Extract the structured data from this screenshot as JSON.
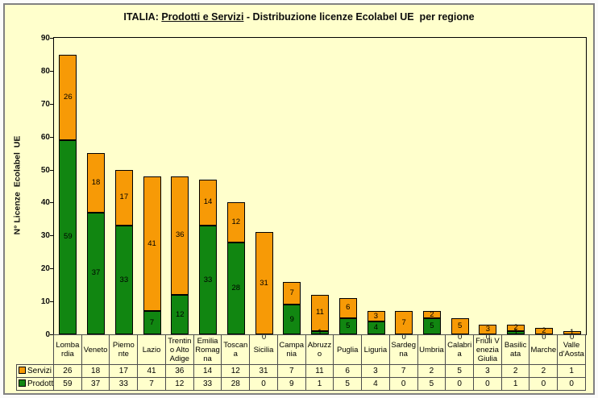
{
  "title": {
    "prefix": "ITALIA: ",
    "underlined": "Prodotti e Servizi",
    "suffix": " - Distribuzione licenze Ecolabel UE  per regione"
  },
  "y_axis_title": "N° Licenze  Ecolabel  UE",
  "colors": {
    "background": "#FFFFCC",
    "servizi": "#F79A06",
    "prodotti": "#118611",
    "bar_border": "#000000",
    "frame_border": "#818181",
    "table_border": "#4d4d4d"
  },
  "chart_data": {
    "type": "bar",
    "stacked": true,
    "title": "ITALIA: Prodotti e Servizi - Distribuzione licenze Ecolabel UE per regione",
    "xlabel": "",
    "ylabel": "N° Licenze Ecolabel UE",
    "ylim": [
      0,
      90
    ],
    "ytick_step": 10,
    "grid": false,
    "legend_position": "table-left",
    "categories": [
      "Lombardia",
      "Veneto",
      "Piemonte",
      "Lazio",
      "Trentino Alto Adige",
      "Emilia Romagna",
      "Toscana",
      "Sicilia",
      "Campania",
      "Abruzzo",
      "Puglia",
      "Liguria",
      "Sardegna",
      "Umbria",
      "Calabria",
      "Friuli Venezia Giulia",
      "Basilicata",
      "Marche",
      "Valle d'Aosta"
    ],
    "series": [
      {
        "name": "Servizi",
        "color": "#F79A06",
        "values": [
          26,
          18,
          17,
          41,
          36,
          14,
          12,
          31,
          7,
          11,
          6,
          3,
          7,
          2,
          5,
          3,
          2,
          2,
          1
        ]
      },
      {
        "name": "Prodotti",
        "color": "#118611",
        "values": [
          59,
          37,
          33,
          7,
          12,
          33,
          28,
          0,
          9,
          1,
          5,
          4,
          0,
          5,
          0,
          0,
          1,
          0,
          0
        ]
      }
    ]
  }
}
